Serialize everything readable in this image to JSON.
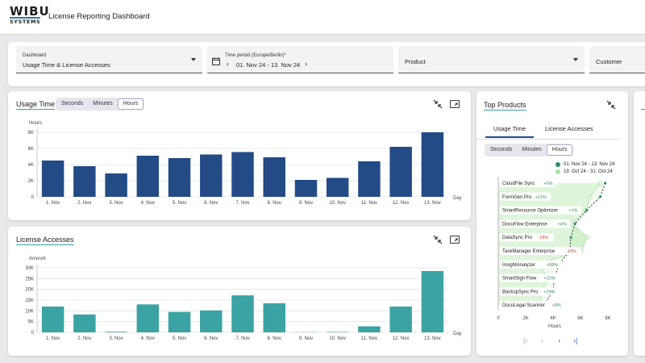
{
  "header": {
    "logo_top": "WIBU",
    "logo_bottom": "SYSTEMS",
    "title": "License Reporting Dashboard"
  },
  "filters": {
    "dashboard": {
      "label": "Dashboard",
      "value": "Usage Time & License Accesses"
    },
    "period": {
      "label": "Time period (Europe/Berlin)*",
      "value": "01. Nov 24 - 13. Nov 24",
      "prev": "‹",
      "next": "›"
    },
    "product": {
      "placeholder": "Product"
    },
    "customer": {
      "placeholder": "Customer"
    }
  },
  "colors": {
    "usage_bar": "#234b86",
    "access_bar": "#3ba3a3",
    "accent": "#3aa3a0",
    "current": "#2e8b6e",
    "previous": "#a8e2a3"
  },
  "icons": {
    "collapse": "collapse-icon",
    "fullscreen": "fullscreen-icon",
    "calendar": "calendar-icon"
  },
  "usage_card": {
    "title": "Usage Time",
    "units": [
      "Seconds",
      "Minutes",
      "Hours"
    ],
    "active_unit": "Hours"
  },
  "access_card": {
    "title": "License Accesses"
  },
  "top_products": {
    "title": "Top Products",
    "tabs": [
      "Usage Time",
      "License Accesses"
    ],
    "active_tab": "Usage Time",
    "units": [
      "Seconds",
      "Minutes",
      "Hours"
    ],
    "active_unit": "Hours",
    "legend": [
      {
        "label": "01. Nov 24 - 13. Nov 24",
        "color": "#2e8b6e"
      },
      {
        "label": "19. Oct 24 - 31. Oct 24",
        "color": "#a8e2a3"
      }
    ],
    "pager": {
      "first": "|‹",
      "prev": "‹",
      "next": "›",
      "last": "›|"
    }
  },
  "chart_data": [
    {
      "type": "bar",
      "title": "Usage Time",
      "ylabel": "Hours",
      "xlabel": "Day",
      "categories": [
        "1. Nov",
        "2. Nov",
        "3. Nov",
        "4. Nov",
        "5. Nov",
        "6. Nov",
        "7. Nov",
        "8. Nov",
        "9. Nov",
        "10. Nov",
        "11. Nov",
        "12. Nov",
        "13. Nov"
      ],
      "values": [
        4500,
        3800,
        2900,
        5100,
        4800,
        5250,
        5550,
        4900,
        2100,
        2350,
        4400,
        6200,
        8000
      ],
      "yticks": [
        "0",
        "2K",
        "4K",
        "6K",
        "8K"
      ],
      "ylim": [
        0,
        8000
      ],
      "grid": true
    },
    {
      "type": "bar",
      "title": "License Accesses",
      "ylabel": "Amount",
      "xlabel": "Day",
      "categories": [
        "1. Nov",
        "2. Nov",
        "3. Nov",
        "4. Nov",
        "5. Nov",
        "6. Nov",
        "7. Nov",
        "8. Nov",
        "9. Nov",
        "10. Nov",
        "11. Nov",
        "12. Nov",
        "13. Nov"
      ],
      "values": [
        12000,
        8300,
        300,
        13000,
        9500,
        10200,
        17200,
        13500,
        100,
        200,
        2800,
        12000,
        28500
      ],
      "yticks": [
        "0",
        "5K",
        "10K",
        "15K",
        "20K",
        "25K",
        "30K"
      ],
      "ylim": [
        0,
        30000
      ],
      "grid": true
    },
    {
      "type": "area",
      "title": "Top Products",
      "xlabel": "Hours",
      "xticks": [
        "0",
        "2K",
        "4K",
        "6K",
        "8K"
      ],
      "xlim": [
        0,
        8000
      ],
      "categories": [
        "CloudFile Sync",
        "FormGen Pro",
        "SmartResource Optimizer",
        "DocuFlow Enterprise",
        "DataSync Pro",
        "TaskManager Enterprise",
        "InsightAnalyzer",
        "SmartSign Flow",
        "BackupSync Pro",
        "DocuLegal Scanner"
      ],
      "changes": [
        "+5%",
        "+11%",
        "+1%",
        "+4%",
        "-18%",
        "-14%",
        "+59%",
        "+10%",
        "+29%",
        "+9%"
      ],
      "series": [
        {
          "name": "01. Nov 24 - 13. Nov 24",
          "values": [
            7800,
            7450,
            6450,
            5600,
            5300,
            5200,
            4450,
            4100,
            4000,
            3300
          ]
        },
        {
          "name": "19. Oct 24 - 31. Oct 24",
          "values": [
            7450,
            6700,
            6400,
            5400,
            6500,
            6050,
            2800,
            3750,
            3100,
            3050
          ]
        }
      ]
    }
  ]
}
